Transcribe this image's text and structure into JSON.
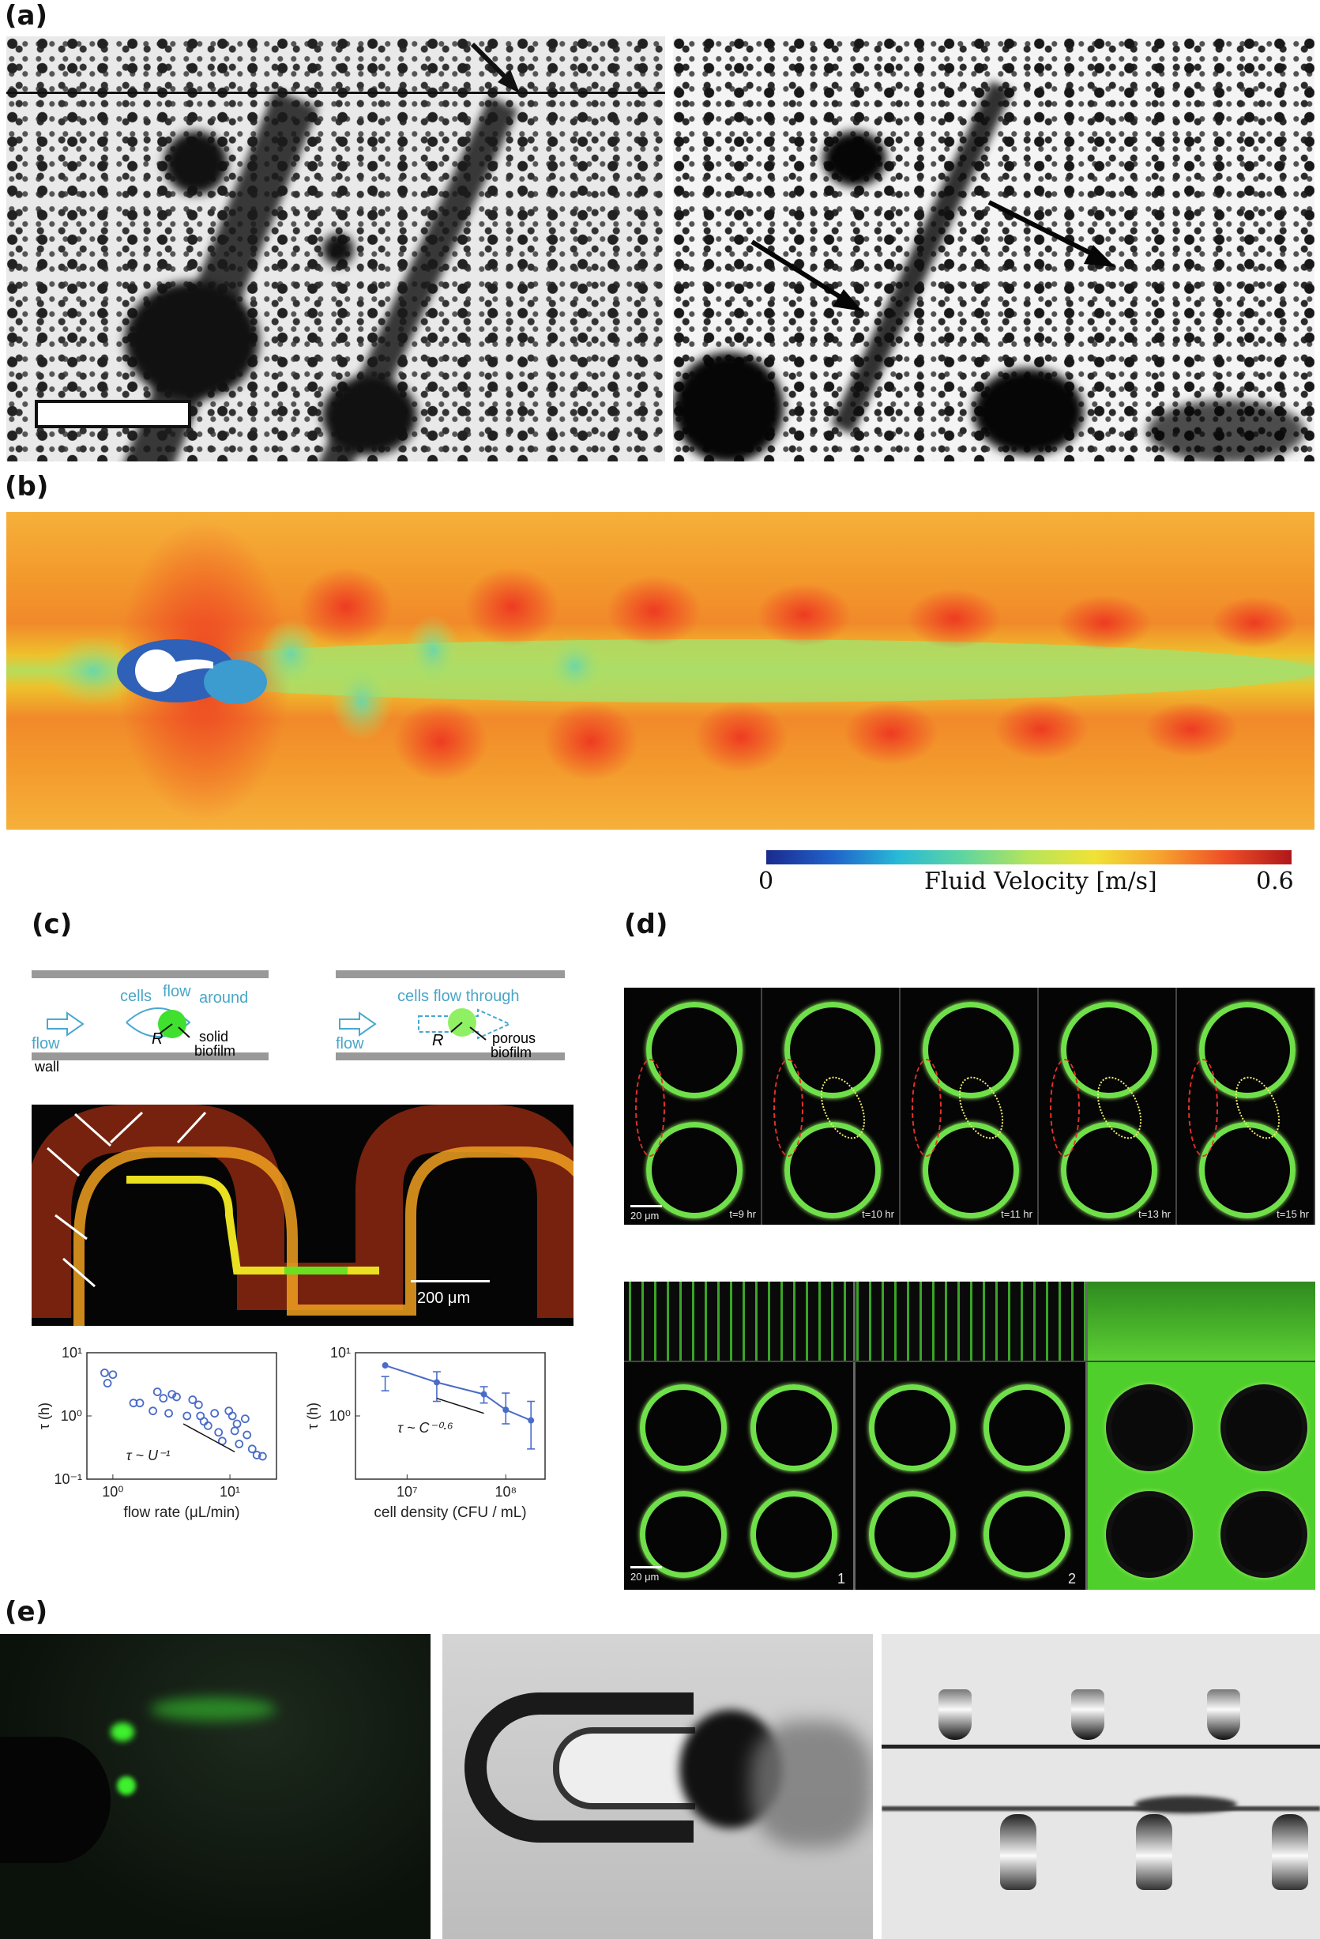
{
  "panels": {
    "a": "(a)",
    "b": "(b)",
    "c": "(c)",
    "d": "(d)",
    "e": "(e)"
  },
  "colorbar": {
    "min": "0",
    "label": "Fluid Velocity [m/s]",
    "max": "0.6"
  },
  "schematic": {
    "left": {
      "flow": "flow",
      "cells": "cells",
      "flow_word": "flow",
      "around": "around",
      "r": "R",
      "solid": "solid",
      "biofilm": "biofilm",
      "wall": "wall"
    },
    "right": {
      "caption": "cells flow through",
      "flow": "flow",
      "r": "R",
      "porous": "porous",
      "biofilm": "biofilm"
    }
  },
  "scale_c": "200 μm",
  "chart_data": [
    {
      "type": "scatter",
      "xlabel": "flow rate (μL/min)",
      "ylabel": "τ (h)",
      "xscale": "log",
      "yscale": "log",
      "xlim": [
        0.6,
        25
      ],
      "ylim": [
        0.1,
        10
      ],
      "xticks": [
        "10⁰",
        "10¹"
      ],
      "yticks": [
        "10⁻¹",
        "10⁰",
        "10¹"
      ],
      "annotation": "τ ~ U⁻¹",
      "points": [
        [
          0.85,
          4.8
        ],
        [
          1.0,
          4.5
        ],
        [
          0.9,
          3.3
        ],
        [
          1.5,
          1.6
        ],
        [
          1.7,
          1.6
        ],
        [
          2.2,
          1.2
        ],
        [
          2.4,
          2.4
        ],
        [
          2.7,
          1.9
        ],
        [
          3.0,
          1.1
        ],
        [
          3.2,
          2.2
        ],
        [
          3.5,
          2.0
        ],
        [
          4.3,
          1.0
        ],
        [
          4.8,
          1.8
        ],
        [
          5.4,
          1.5
        ],
        [
          5.6,
          1.0
        ],
        [
          6.0,
          0.82
        ],
        [
          6.5,
          0.7
        ],
        [
          7.4,
          1.1
        ],
        [
          8.0,
          0.55
        ],
        [
          8.6,
          0.4
        ],
        [
          9.8,
          1.2
        ],
        [
          10.5,
          1.0
        ],
        [
          11.5,
          0.75
        ],
        [
          11.0,
          0.58
        ],
        [
          12.0,
          0.36
        ],
        [
          13.5,
          0.9
        ],
        [
          14.0,
          0.5
        ],
        [
          15.5,
          0.3
        ],
        [
          17.0,
          0.24
        ],
        [
          19.0,
          0.23
        ]
      ]
    },
    {
      "type": "line",
      "xlabel": "cell density (CFU / mL)",
      "ylabel": "τ (h)",
      "xscale": "log",
      "yscale": "log",
      "xlim": [
        3000000.0,
        250000000.0
      ],
      "ylim": [
        0.1,
        10
      ],
      "xticks": [
        "10⁷",
        "10⁸"
      ],
      "yticks": [
        "10⁰",
        "10¹"
      ],
      "annotation": "τ ~ C⁻⁰·⁶",
      "x": [
        6000000.0,
        20000000.0,
        60000000.0,
        100000000.0,
        180000000.0
      ],
      "y": [
        6.3,
        3.4,
        2.2,
        1.25,
        0.85
      ],
      "yerr": [
        [
          2.5,
          4.2
        ],
        [
          1.7,
          5.0
        ],
        [
          1.6,
          2.9
        ],
        [
          0.75,
          2.3
        ],
        [
          0.3,
          1.7
        ]
      ]
    }
  ],
  "panel_d": {
    "times": [
      "t=9 hr",
      "t=10 hr",
      "t=11 hr",
      "t=13 hr",
      "t=15 hr"
    ],
    "scale_top": "20 μm",
    "scale_bottom": "20 μm",
    "stage_labels": [
      "1",
      "2"
    ]
  }
}
